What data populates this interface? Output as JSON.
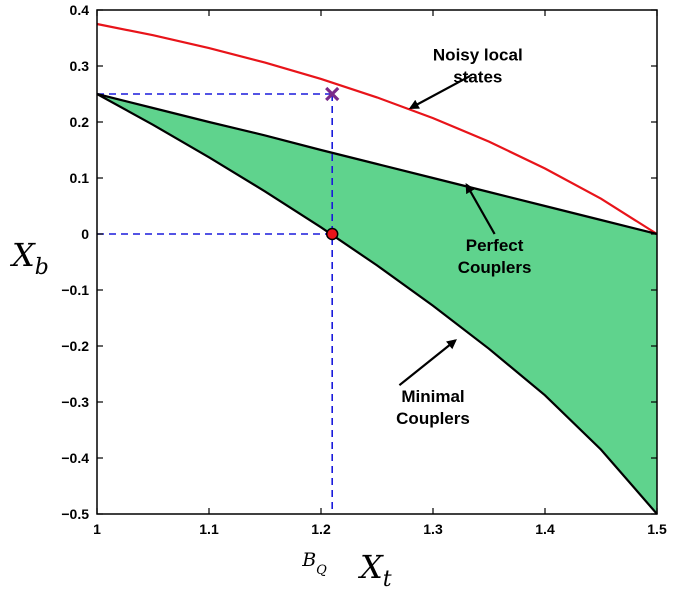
{
  "chart_data": {
    "type": "line",
    "xlabel": "X",
    "xlabel_sub": "t",
    "ylabel": "X",
    "ylabel_sub": "b",
    "xlim": [
      1.0,
      1.5
    ],
    "ylim": [
      -0.5,
      0.4
    ],
    "xticks": [
      "1",
      "1.1",
      "1.2",
      "1.3",
      "1.4",
      "1.5"
    ],
    "yticks": [
      "0.4",
      "0.3",
      "0.2",
      "0.1",
      "0",
      "-0.1",
      "-0.2",
      "-0.3",
      "-0.4",
      "-0.5"
    ],
    "grid": false,
    "bq_label": "B",
    "bq_sub": "Q",
    "bq_x": 1.21,
    "series": [
      {
        "name": "Noisy local states",
        "color": "#e8141a",
        "x": [
          1.0,
          1.05,
          1.1,
          1.15,
          1.2,
          1.25,
          1.3,
          1.35,
          1.4,
          1.45,
          1.5
        ],
        "y": [
          0.375,
          0.355,
          0.332,
          0.306,
          0.277,
          0.244,
          0.207,
          0.165,
          0.117,
          0.063,
          0.0
        ]
      },
      {
        "name": "Perfect Couplers",
        "color": "#000000",
        "x": [
          1.0,
          1.05,
          1.1,
          1.15,
          1.2,
          1.25,
          1.3,
          1.35,
          1.4,
          1.45,
          1.5
        ],
        "y": [
          0.25,
          0.225,
          0.2,
          0.176,
          0.15,
          0.125,
          0.1,
          0.075,
          0.05,
          0.025,
          0.0
        ]
      },
      {
        "name": "Minimal Couplers",
        "color": "#000000",
        "x": [
          1.0,
          1.05,
          1.1,
          1.15,
          1.2,
          1.25,
          1.3,
          1.35,
          1.4,
          1.45,
          1.5
        ],
        "y": [
          0.25,
          0.195,
          0.137,
          0.076,
          0.012,
          -0.056,
          -0.128,
          -0.205,
          -0.288,
          -0.385,
          -0.5
        ]
      }
    ],
    "fill_color": "#5fd38d",
    "marker_cross": {
      "x": 1.21,
      "y": 0.25,
      "color": "#7b2a8a"
    },
    "marker_dot": {
      "x": 1.21,
      "y": 0.0,
      "color": "#e8141a"
    },
    "guide_color": "#1a1adb",
    "annotations": [
      {
        "lines": [
          "Noisy local",
          "states"
        ],
        "text_x": 1.34,
        "text_y": 0.31,
        "arrow_from": [
          1.333,
          0.282
        ],
        "arrow_to": [
          1.28,
          0.225
        ]
      },
      {
        "lines": [
          "Perfect",
          "Couplers"
        ],
        "text_x": 1.355,
        "text_y": -0.03,
        "arrow_from": [
          1.355,
          0.0
        ],
        "arrow_to": [
          1.33,
          0.088
        ]
      },
      {
        "lines": [
          "Minimal",
          "Couplers"
        ],
        "text_x": 1.3,
        "text_y": -0.3,
        "arrow_from": [
          1.27,
          -0.27
        ],
        "arrow_to": [
          1.32,
          -0.19
        ]
      }
    ]
  }
}
